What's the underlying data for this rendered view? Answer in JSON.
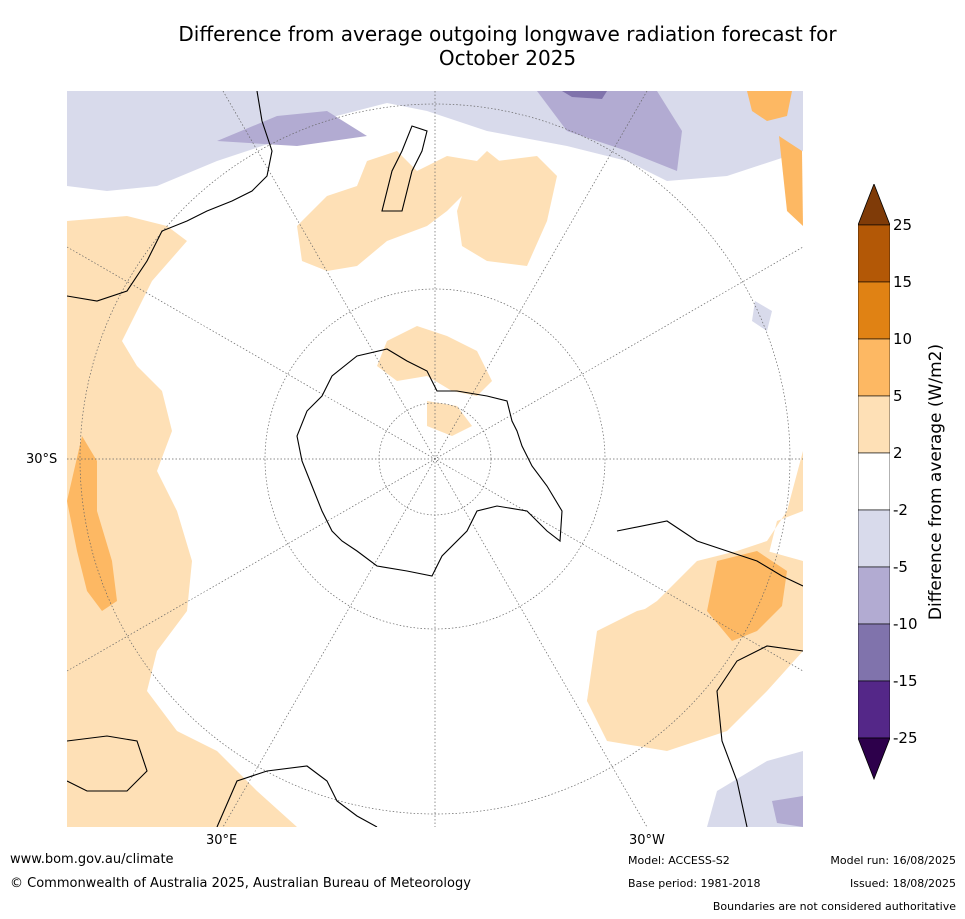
{
  "title_line1": "Difference from average outgoing longwave radiation forecast for",
  "title_line2": "October 2025",
  "map_labels": {
    "lat_30s": "30°S",
    "lon_30e": "30°E",
    "lon_30w": "30°W"
  },
  "colorbar": {
    "title": "Difference from average (W/m2)",
    "ticks": [
      "25",
      "15",
      "10",
      "5",
      "2",
      "-2",
      "-5",
      "-10",
      "-15",
      "-25"
    ],
    "colors": [
      "#7f3b08",
      "#b35806",
      "#e08214",
      "#fdb863",
      "#fee0b6",
      "#ffffff",
      "#d8daeb",
      "#b2abd2",
      "#8073ac",
      "#542788",
      "#2d004b"
    ]
  },
  "footer": {
    "website": "www.bom.gov.au/climate",
    "copyright": "© Commonwealth of Australia 2025, Australian Bureau of Meteorology",
    "model": "Model: ACCESS-S2",
    "base_period": "Base period: 1981-2018",
    "model_run": "Model run: 16/08/2025",
    "issued": "Issued: 18/08/2025",
    "disclaimer": "Boundaries are not considered authoritative"
  }
}
